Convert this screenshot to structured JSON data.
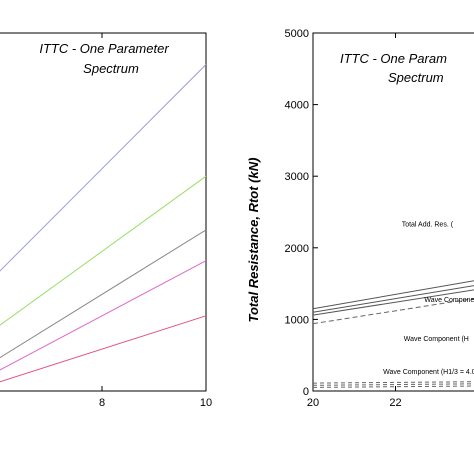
{
  "chart_data": [
    {
      "type": "line",
      "annotation_line1": "ITTC - One Parameter",
      "annotation_line2": "Spectrum",
      "xlabel": "",
      "ylabel": "",
      "xlim": [
        6,
        10
      ],
      "ylim": [
        0,
        5000
      ],
      "x_ticks": [
        8,
        10
      ],
      "x_tick_labels": [
        "8",
        "10"
      ],
      "series": [
        {
          "color": "#9b9be0",
          "x": [
            6,
            10
          ],
          "y": [
            1650,
            4560
          ]
        },
        {
          "color": "#99dd66",
          "x": [
            6,
            10
          ],
          "y": [
            900,
            3000
          ]
        },
        {
          "color": "#888888",
          "x": [
            6,
            10
          ],
          "y": [
            450,
            2250
          ]
        },
        {
          "color": "#e066c8",
          "x": [
            6,
            10
          ],
          "y": [
            280,
            1820
          ]
        },
        {
          "color": "#e0508a",
          "x": [
            6,
            10
          ],
          "y": [
            120,
            1050
          ]
        }
      ]
    },
    {
      "type": "line",
      "annotation_line1": "ITTC - One Param",
      "annotation_line2": "Spectrum",
      "xlabel": "",
      "ylabel": "Total Resistance, Rtot  (kN)",
      "xlim": [
        20,
        24
      ],
      "ylim": [
        0,
        5000
      ],
      "x_ticks": [
        20,
        22
      ],
      "x_tick_labels": [
        "20",
        "22"
      ],
      "y_ticks": [
        0,
        1000,
        2000,
        3000,
        4000,
        5000
      ],
      "y_tick_labels": [
        "0",
        "1000",
        "2000",
        "3000",
        "4000",
        "5000"
      ],
      "series": [
        {
          "color": "#555555",
          "dash": "",
          "x": [
            20,
            24
          ],
          "y": [
            1150,
            1550
          ]
        },
        {
          "color": "#555555",
          "dash": "",
          "x": [
            20,
            24
          ],
          "y": [
            1100,
            1480
          ]
        },
        {
          "color": "#555555",
          "dash": "",
          "x": [
            20,
            24
          ],
          "y": [
            1060,
            1420
          ]
        },
        {
          "color": "#666666",
          "dash": "5,3",
          "x": [
            20,
            24
          ],
          "y": [
            940,
            1300
          ]
        },
        {
          "color": "#666666",
          "dash": "4,3",
          "x": [
            20,
            24
          ],
          "y": [
            110,
            130
          ]
        },
        {
          "color": "#666666",
          "dash": "4,3",
          "x": [
            20,
            24
          ],
          "y": [
            80,
            100
          ]
        },
        {
          "color": "#666666",
          "dash": "4,3",
          "x": [
            20,
            24
          ],
          "y": [
            50,
            70
          ]
        }
      ],
      "annotations": [
        {
          "text": "Total Add. Res. (",
          "x": 22.15,
          "y": 2300
        },
        {
          "text": "Wave Compone",
          "x": 22.7,
          "y": 1240
        },
        {
          "text": "Wave Component (H",
          "x": 22.2,
          "y": 700
        },
        {
          "text": "Wave Component (H1/3 = 4.0",
          "x": 21.7,
          "y": 240
        }
      ]
    }
  ]
}
